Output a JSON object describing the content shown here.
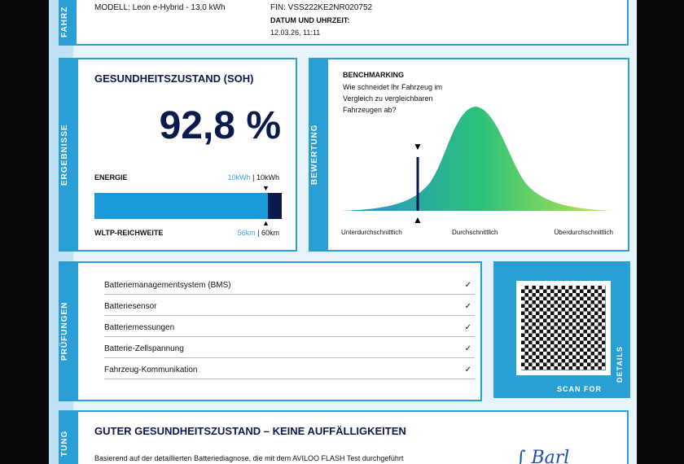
{
  "vehicle": {
    "side_label": "FAHRZ",
    "model": "MODELL: Leon e-Hybrid - 13,0 kWh",
    "vin": "FIN: VSS222KE2NR020752",
    "date_label": "DATUM UND UHRZEIT:",
    "date_value": "12.03.26, 11:11"
  },
  "results": {
    "side_label": "ERGEBNISSE",
    "title": "GESUNDHEITSZUSTAND (SOH)",
    "soh": "92,8 %",
    "energy_label": "ENERGIE",
    "energy_current": "10kWh",
    "energy_sep": " | ",
    "energy_nominal": "10kWh",
    "range_label": "WLTP-REICHWEITE",
    "range_current": "56km",
    "range_nominal": "60km",
    "bar_fraction": 0.928,
    "colors": {
      "bar": "#1a9ad9",
      "remainder": "#0b1a4d"
    }
  },
  "benchmark": {
    "side_label": "BEWERTUNG",
    "title": "BENCHMARKING",
    "question": "Wie schneidet Ihr Fahrzeug im Vergleich zu vergleichbaren Fahrzeugen ab?",
    "axis_low": "Unterdurchschnittlich",
    "axis_mid": "Durchschnittlich",
    "axis_high": "Überdurchschnittlich"
  },
  "checks": {
    "side_label": "PRÜFUNGEN",
    "items": [
      {
        "label": "Batteriemanagementsystem (BMS)",
        "status": "✓"
      },
      {
        "label": "Batteriesensor",
        "status": "✓"
      },
      {
        "label": "Batteriemessungen",
        "status": "✓"
      },
      {
        "label": "Batterie-Zellspannung",
        "status": "✓"
      },
      {
        "label": "Fahrzeug-Kommunikation",
        "status": "✓"
      }
    ]
  },
  "qr": {
    "caption_scan": "SCAN FOR",
    "caption_details": "DETAILS"
  },
  "summary": {
    "side_label": "TUNG",
    "title": "GUTER GESUNDHEITSZUSTAND – KEINE AUFFÄLLIGKEITEN",
    "text": "Basierend auf der detaillierten Batteriediagnose, die mit dem AVILOO FLASH Test durchgeführt"
  }
}
